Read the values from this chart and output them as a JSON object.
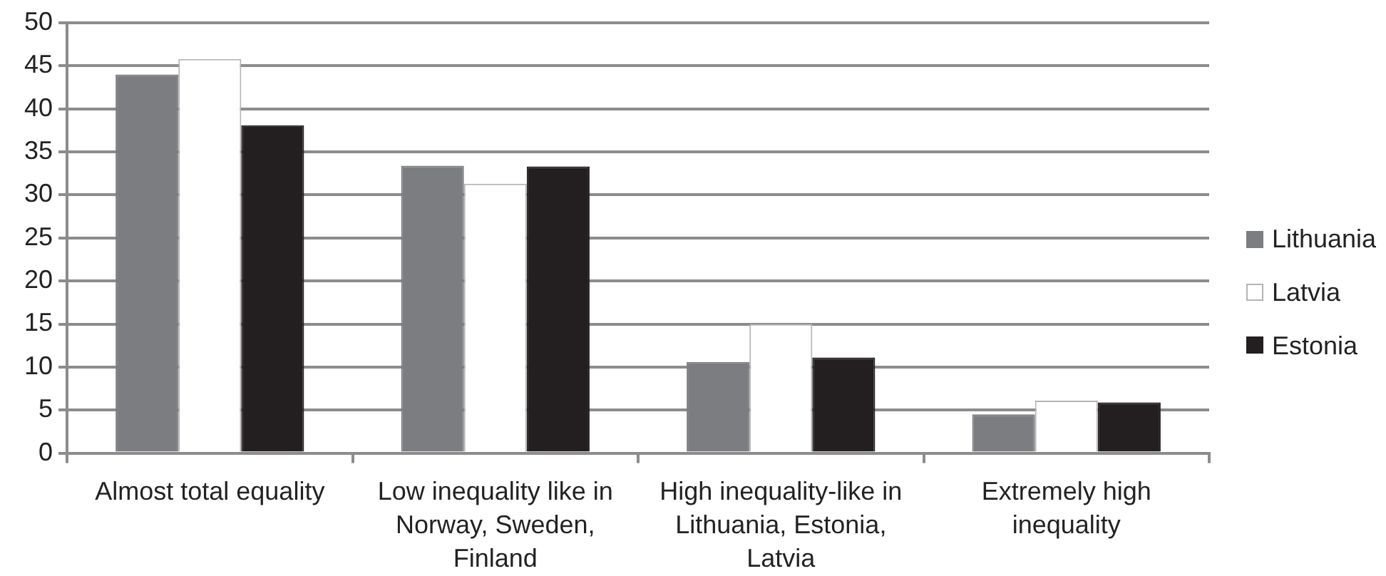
{
  "chart_data": {
    "type": "bar",
    "categories": [
      "Almost total equality",
      "Low inequality like in Norway, Sweden, Finland",
      "High inequality-like in Lithuania, Estonia, Latvia",
      "Extremely high inequality"
    ],
    "series": [
      {
        "name": "Lithuania",
        "color": "#7c7d81",
        "values": [
          44,
          33.4,
          10.6,
          4.5
        ]
      },
      {
        "name": "Latvia",
        "color": "#ffffff",
        "values": [
          45.8,
          31.3,
          15,
          6.1
        ]
      },
      {
        "name": "Estonia",
        "color": "#231f20",
        "values": [
          38.1,
          33.3,
          11.1,
          5.9
        ]
      }
    ],
    "ylim": [
      0,
      50
    ],
    "yticks": [
      0,
      5,
      10,
      15,
      20,
      25,
      30,
      35,
      40,
      45,
      50
    ],
    "grid": "y",
    "legend": "right"
  }
}
